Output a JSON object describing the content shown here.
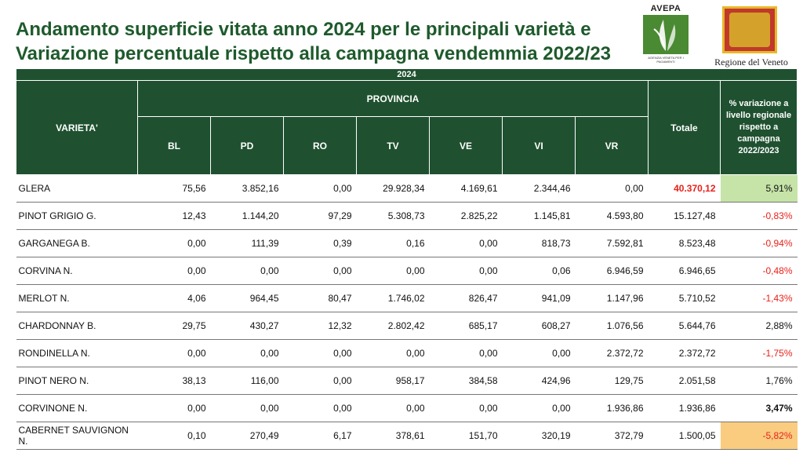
{
  "title": {
    "line1": "Andamento superficie vitata anno 2024 per le principali varietà e",
    "line2": "Variazione percentuale rispetto alla campagna vendemmia 2022/23"
  },
  "logos": {
    "avepa_text": "AVEPA",
    "avepa_sub": "AGENZIA VENETA PER I PAGAMENTI",
    "veneto_text": "Regione del Veneto",
    "avepa_icon": "wheat-leaf-logo",
    "veneto_icon": "lion-of-st-mark-shield"
  },
  "table": {
    "year": "2024",
    "variety_header": "VARIETA'",
    "province_header": "PROVINCIA",
    "total_header": "Totale",
    "pct_header": "% variazione a livello regionale rispetto a campagna 2022/2023",
    "provinces": [
      "BL",
      "PD",
      "RO",
      "TV",
      "VE",
      "VI",
      "VR"
    ],
    "rows": [
      {
        "name": "GLERA",
        "values": [
          "75,56",
          "3.852,16",
          "0,00",
          "29.928,34",
          "4.169,61",
          "2.344,46",
          "0,00"
        ],
        "total": "40.370,12",
        "pct": "5,91%"
      },
      {
        "name": "PINOT GRIGIO G.",
        "values": [
          "12,43",
          "1.144,20",
          "97,29",
          "5.308,73",
          "2.825,22",
          "1.145,81",
          "4.593,80"
        ],
        "total": "15.127,48",
        "pct": "-0,83%"
      },
      {
        "name": "GARGANEGA B.",
        "values": [
          "0,00",
          "111,39",
          "0,39",
          "0,16",
          "0,00",
          "818,73",
          "7.592,81"
        ],
        "total": "8.523,48",
        "pct": "-0,94%"
      },
      {
        "name": "CORVINA N.",
        "values": [
          "0,00",
          "0,00",
          "0,00",
          "0,00",
          "0,00",
          "0,06",
          "6.946,59"
        ],
        "total": "6.946,65",
        "pct": "-0,48%"
      },
      {
        "name": "MERLOT N.",
        "values": [
          "4,06",
          "964,45",
          "80,47",
          "1.746,02",
          "826,47",
          "941,09",
          "1.147,96"
        ],
        "total": "5.710,52",
        "pct": "-1,43%"
      },
      {
        "name": "CHARDONNAY B.",
        "values": [
          "29,75",
          "430,27",
          "12,32",
          "2.802,42",
          "685,17",
          "608,27",
          "1.076,56"
        ],
        "total": "5.644,76",
        "pct": "2,88%"
      },
      {
        "name": "RONDINELLA N.",
        "values": [
          "0,00",
          "0,00",
          "0,00",
          "0,00",
          "0,00",
          "0,00",
          "2.372,72"
        ],
        "total": "2.372,72",
        "pct": "-1,75%"
      },
      {
        "name": "PINOT NERO N.",
        "values": [
          "38,13",
          "116,00",
          "0,00",
          "958,17",
          "384,58",
          "424,96",
          "129,75"
        ],
        "total": "2.051,58",
        "pct": "1,76%"
      },
      {
        "name": "CORVINONE N.",
        "values": [
          "0,00",
          "0,00",
          "0,00",
          "0,00",
          "0,00",
          "0,00",
          "1.936,86"
        ],
        "total": "1.936,86",
        "pct": "3,47%"
      },
      {
        "name": "CABERNET SAUVIGNON N.",
        "values": [
          "0,10",
          "270,49",
          "6,17",
          "378,61",
          "151,70",
          "320,19",
          "372,79"
        ],
        "total": "1.500,05",
        "pct": "-5,82%"
      }
    ]
  },
  "colors": {
    "header_bg": "#1f5130",
    "title": "#1e5a2c",
    "negative": "#e8211b",
    "highlight_green": "#c6e3a8",
    "highlight_orange": "#f9cc80"
  }
}
